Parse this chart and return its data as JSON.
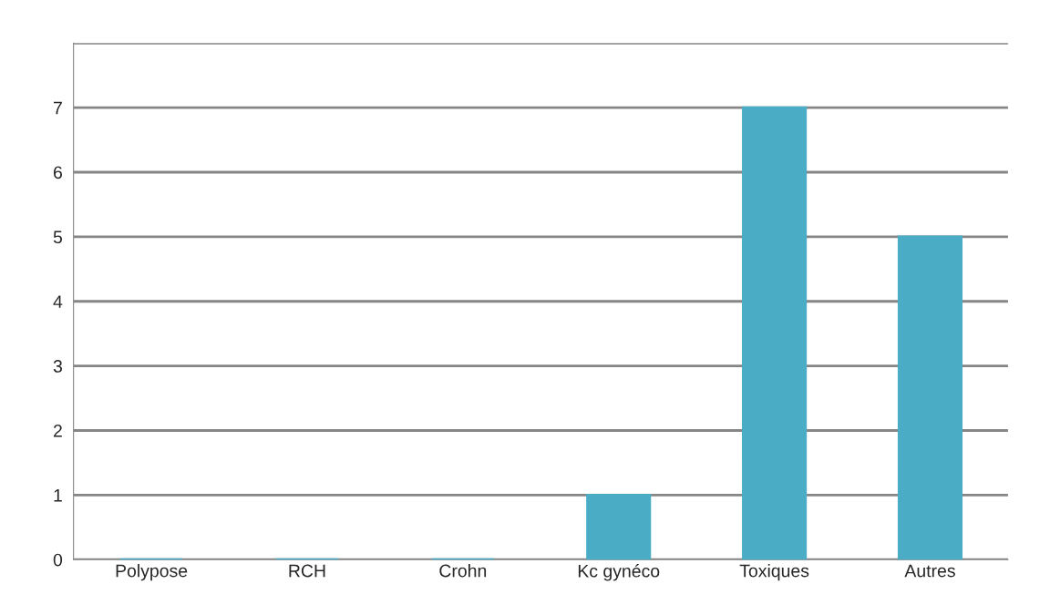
{
  "chart_data": {
    "type": "bar",
    "categories": [
      "Polypose",
      "RCH",
      "Crohn",
      "Kc gynéco",
      "Toxiques",
      "Autres"
    ],
    "values": [
      0,
      0,
      0,
      1,
      7,
      5
    ],
    "color": "#4bacc6",
    "ylim": [
      0,
      8
    ],
    "yticks": [
      0,
      1,
      2,
      3,
      4,
      5,
      6,
      7,
      {
        "value": 8,
        "label": null
      }
    ],
    "grid": "y"
  }
}
